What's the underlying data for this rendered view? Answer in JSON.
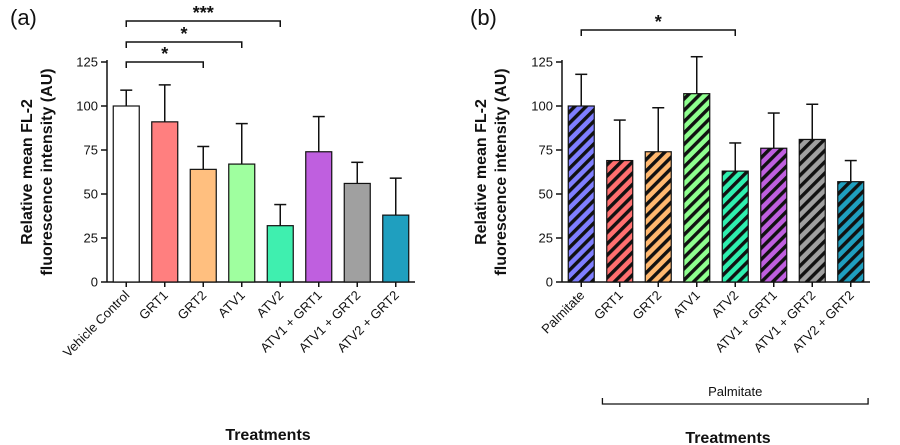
{
  "chart_data": [
    {
      "type": "bar",
      "panel_label": "(a)",
      "ylabel_line1": "Relative mean FL-2",
      "ylabel_line2": "fluorescence intensity (AU)",
      "xlabel": "Treatments",
      "ylim": [
        0,
        125
      ],
      "yticks": [
        0,
        25,
        50,
        75,
        100,
        125
      ],
      "categories": [
        "Vehicle Control",
        "GRT1",
        "GRT2",
        "ATV1",
        "ATV2",
        "ATV1 + GRT1",
        "ATV1 + GRT2",
        "ATV2 + GRT2"
      ],
      "values": [
        100,
        91,
        64,
        67,
        32,
        74,
        56,
        38
      ],
      "errors": [
        9,
        21,
        13,
        23,
        12,
        20,
        12,
        21
      ],
      "colors": [
        "#ffffff",
        "#ff7f7f",
        "#ffbf7f",
        "#9fff9f",
        "#3fefaf",
        "#bf5fdf",
        "#a0a0a0",
        "#1f9fbf"
      ],
      "hatched": false,
      "significance": [
        {
          "from": 0,
          "to": 2,
          "label": "*"
        },
        {
          "from": 0,
          "to": 3,
          "label": "*"
        },
        {
          "from": 0,
          "to": 4,
          "label": "***"
        }
      ],
      "group_bracket": null
    },
    {
      "type": "bar",
      "panel_label": "(b)",
      "ylabel_line1": "Relative mean FL-2",
      "ylabel_line2": "fluorescence intensity (AU)",
      "xlabel": "Treatments",
      "ylim": [
        0,
        125
      ],
      "yticks": [
        0,
        25,
        50,
        75,
        100,
        125
      ],
      "categories": [
        "Palmitate",
        "GRT1",
        "GRT2",
        "ATV1",
        "ATV2",
        "ATV1 + GRT1",
        "ATV1 + GRT2",
        "ATV2 + GRT2"
      ],
      "values": [
        100,
        69,
        74,
        107,
        63,
        76,
        81,
        57
      ],
      "errors": [
        18,
        23,
        25,
        21,
        16,
        20,
        20,
        12
      ],
      "colors": [
        "#7f7fff",
        "#ff6f6f",
        "#ffb86f",
        "#8fff8f",
        "#2fefaf",
        "#bf5fdf",
        "#a0a0a0",
        "#1f9fbf"
      ],
      "hatched": true,
      "significance": [
        {
          "from": 0,
          "to": 4,
          "label": "*"
        }
      ],
      "group_bracket": {
        "from": 1,
        "to": 7,
        "label": "Palmitate"
      }
    }
  ]
}
